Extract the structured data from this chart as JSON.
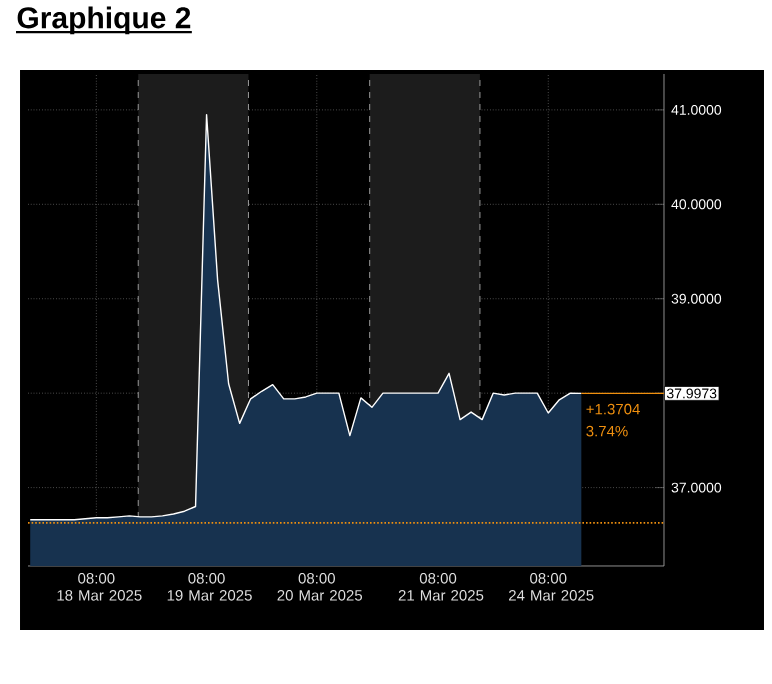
{
  "chart_data": {
    "type": "area",
    "title": "Graphique 2",
    "color": "#17324f",
    "categories": [
      null,
      null,
      null,
      null,
      null,
      null,
      "08:00 18 Mar 2025",
      null,
      null,
      null,
      null,
      null,
      null,
      null,
      null,
      null,
      "08:00 19 Mar 2025",
      null,
      null,
      null,
      null,
      null,
      null,
      null,
      null,
      null,
      "08:00 20 Mar 2025",
      null,
      null,
      null,
      null,
      null,
      null,
      null,
      null,
      null,
      null,
      "08:00 21 Mar 2025",
      null,
      null,
      null,
      null,
      null,
      null,
      null,
      null,
      null,
      "08:00 24 Mar 2025",
      null,
      null,
      null,
      null,
      null,
      null,
      null,
      null,
      null,
      null
    ],
    "values": [
      36.66,
      36.66,
      36.66,
      36.66,
      36.66,
      36.67,
      36.68,
      36.68,
      36.69,
      36.7,
      36.69,
      36.69,
      36.7,
      36.72,
      36.75,
      36.8,
      40.95,
      39.2,
      38.1,
      37.68,
      37.94,
      38.02,
      38.09,
      37.94,
      37.94,
      37.96,
      38.0,
      38.0,
      38.0,
      37.55,
      37.95,
      37.85,
      38.0,
      38.0,
      38.0,
      38.0,
      38.0,
      38.0,
      38.21,
      37.72,
      37.8,
      37.72,
      38.0,
      37.98,
      38.0,
      38.0,
      38.0,
      37.79,
      37.93,
      38.0,
      37.9973,
      null,
      null,
      null,
      null,
      null,
      null,
      null
    ],
    "ylim": [
      36.17,
      41.38
    ],
    "yticks": [
      {
        "value": 37,
        "label": "37.0000"
      },
      {
        "value": 38,
        "label": null
      },
      {
        "value": 39,
        "label": "39.0000"
      },
      {
        "value": 40,
        "label": "40.0000"
      },
      {
        "value": 41,
        "label": "41.0000"
      }
    ],
    "grid": true,
    "ref_lines": [
      {
        "axis": "y",
        "value": 36.6269,
        "color": "#f0900f",
        "line_style": "dotted"
      },
      {
        "axis": "y",
        "value": 37.9973,
        "label": "37.9973",
        "color": "#f0900f",
        "line_style": "solid"
      }
    ],
    "annotations": [
      "+1.3704",
      "3.74%"
    ]
  }
}
